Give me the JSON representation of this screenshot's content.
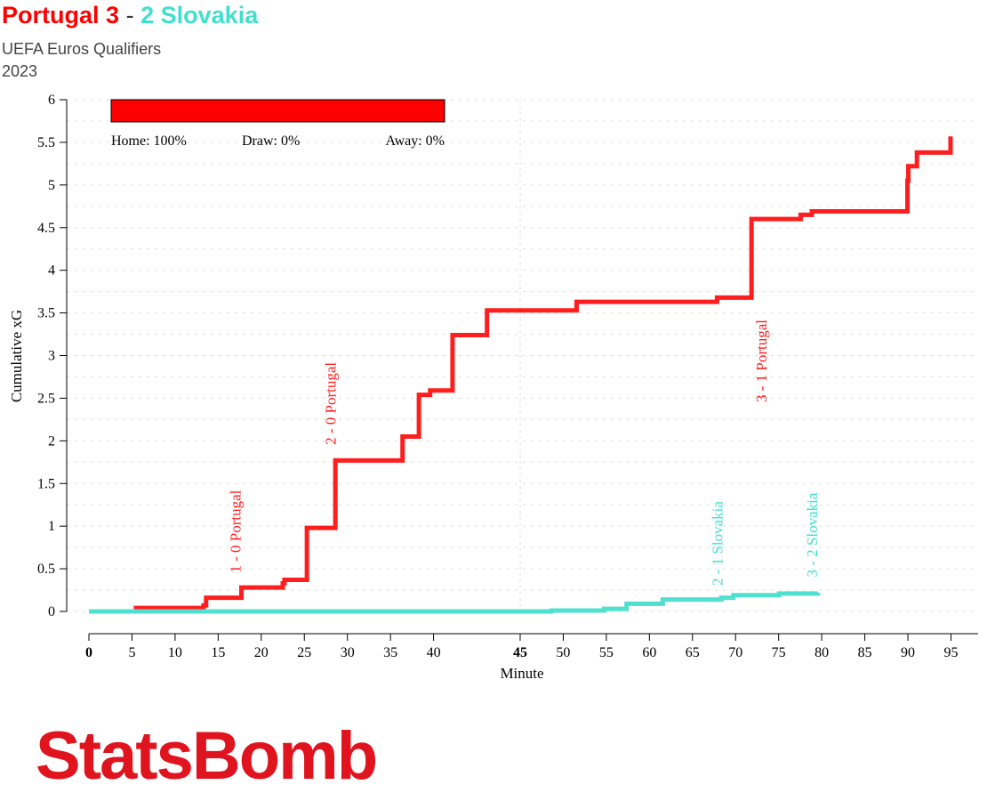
{
  "header": {
    "home_team": "Portugal",
    "home_score": "3",
    "sep": "-",
    "away_score": "2",
    "away_team": "Slovakia",
    "competition": "UEFA Euros Qualifiers",
    "season": "2023"
  },
  "logo": "StatsBomb",
  "colors": {
    "home": "#ff1e1e",
    "away": "#4fe0d0"
  },
  "chart_data": {
    "type": "line",
    "xlabel": "Minute",
    "ylabel": "Cumulative xG",
    "ylim": [
      0,
      6
    ],
    "yticks": [
      "0",
      "0.5",
      "1",
      "1.5",
      "2",
      "2.5",
      "3",
      "3.5",
      "4",
      "4.5",
      "5",
      "5.5",
      "6"
    ],
    "xlim_elapsed": [
      0,
      100
    ],
    "xticks": [
      {
        "label": "0",
        "at": 0,
        "bold": true
      },
      {
        "label": "5",
        "at": 5
      },
      {
        "label": "10",
        "at": 10
      },
      {
        "label": "15",
        "at": 15
      },
      {
        "label": "20",
        "at": 20
      },
      {
        "label": "25",
        "at": 25
      },
      {
        "label": "30",
        "at": 30
      },
      {
        "label": "35",
        "at": 35
      },
      {
        "label": "40",
        "at": 40
      },
      {
        "label": "45",
        "at": 50.05,
        "bold": true
      },
      {
        "label": "50",
        "at": 55.05
      },
      {
        "label": "55",
        "at": 60.05
      },
      {
        "label": "60",
        "at": 65.05
      },
      {
        "label": "65",
        "at": 70.05
      },
      {
        "label": "70",
        "at": 75.05
      },
      {
        "label": "75",
        "at": 80.05
      },
      {
        "label": "80",
        "at": 85.05
      },
      {
        "label": "85",
        "at": 90.05
      },
      {
        "label": "90",
        "at": 95.05
      },
      {
        "label": "95",
        "at": 100.05
      }
    ],
    "win_probability": {
      "home": 100,
      "draw": 0,
      "away": 0,
      "home_label": "Home: 100%",
      "draw_label": "Draw: 0%",
      "away_label": "Away: 0%"
    },
    "series": [
      {
        "name": "Portugal",
        "steps": [
          [
            5.2,
            0.04
          ],
          [
            13.3,
            0.07
          ],
          [
            13.6,
            0.16
          ],
          [
            17.7,
            0.28
          ],
          [
            22.5,
            0.33
          ],
          [
            22.7,
            0.37
          ],
          [
            25.3,
            0.98
          ],
          [
            28.6,
            1.77
          ],
          [
            36.4,
            2.05
          ],
          [
            38.3,
            2.54
          ],
          [
            39.6,
            2.59
          ],
          [
            42.2,
            3.24
          ],
          [
            46.2,
            3.53
          ],
          [
            56.6,
            3.63
          ],
          [
            72.9,
            3.68
          ],
          [
            76.9,
            4.6
          ],
          [
            82.6,
            4.65
          ],
          [
            83.9,
            4.69
          ],
          [
            95.0,
            5.05
          ],
          [
            95.1,
            5.22
          ],
          [
            96.1,
            5.38
          ],
          [
            100.0,
            5.38
          ],
          [
            100.0,
            5.57
          ]
        ]
      },
      {
        "name": "Slovakia",
        "steps": [
          [
            0,
            0.0
          ],
          [
            53.7,
            0.01
          ],
          [
            59.8,
            0.03
          ],
          [
            62.4,
            0.09
          ],
          [
            66.6,
            0.14
          ],
          [
            73.4,
            0.16
          ],
          [
            74.8,
            0.19
          ],
          [
            80.1,
            0.21
          ],
          [
            84.6,
            0.22
          ]
        ]
      }
    ],
    "goals": [
      {
        "label": "1 - 0 Portugal",
        "at": 17.0,
        "team": "home",
        "y": 0.4
      },
      {
        "label": "2 - 0 Portugal",
        "at": 28.0,
        "team": "home",
        "y": 1.9
      },
      {
        "label": "3 - 1 Portugal",
        "at": 78.0,
        "team": "home",
        "y": 2.4
      },
      {
        "label": "2 - 1 Slovakia",
        "at": 72.9,
        "team": "away",
        "y": 0.25
      },
      {
        "label": "3 - 2 Slovakia",
        "at": 83.9,
        "team": "away",
        "y": 0.35
      }
    ]
  }
}
